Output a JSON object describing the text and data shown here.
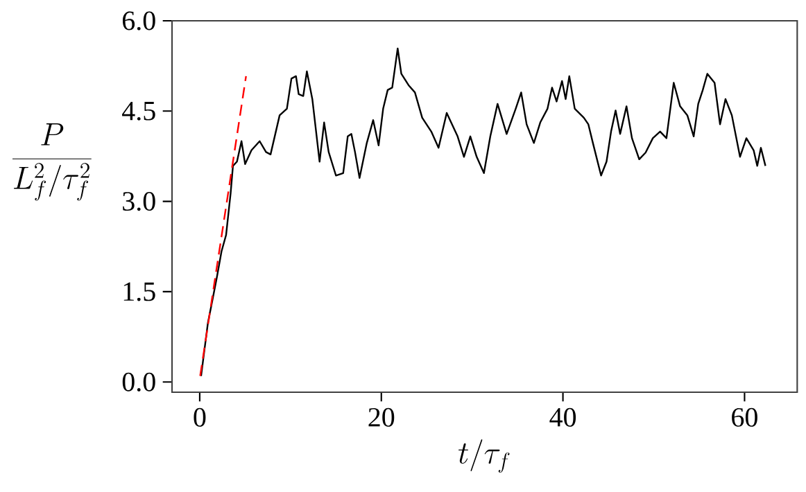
{
  "chart_data": {
    "type": "line",
    "xlabel": "t/\\tau_f",
    "ylabel": "\\frac{P}{L_f^2/\\tau_f^2}",
    "xlim": [
      -3.05,
      65.8
    ],
    "ylim": [
      -0.17,
      6.0
    ],
    "xticks": [
      0,
      20,
      40,
      60
    ],
    "yticks": [
      {
        "value": 0,
        "label": "0.0"
      },
      {
        "value": 1.5,
        "label": "1.5"
      },
      {
        "value": 3,
        "label": "3.0"
      },
      {
        "value": 4.5,
        "label": "4.5"
      },
      {
        "value": 6,
        "label": "6.0"
      }
    ],
    "series": [
      {
        "color": "#000000",
        "line_style": "solid",
        "x": [
          0.15,
          0.9,
          1.4,
          1.9,
          2.4,
          2.9,
          3.4,
          3.66,
          4.1,
          4.6,
          5.0,
          5.7,
          6.6,
          7.3,
          7.8,
          8.8,
          9.6,
          10.1,
          10.6,
          10.9,
          11.4,
          11.8,
          12.4,
          13.2,
          13.7,
          14.2,
          15.0,
          15.8,
          16.3,
          16.7,
          17.1,
          17.6,
          18.4,
          19.1,
          19.7,
          20.2,
          20.7,
          21.2,
          21.8,
          22.2,
          23.0,
          23.7,
          24.5,
          25.5,
          26.3,
          27.2,
          28.4,
          29.1,
          29.8,
          30.5,
          31.3,
          32.0,
          32.8,
          33.8,
          34.8,
          35.4,
          36.0,
          36.8,
          37.5,
          38.3,
          38.8,
          39.3,
          39.9,
          40.3,
          40.7,
          41.3,
          42.3,
          42.8,
          43.3,
          44.2,
          44.8,
          45.3,
          45.8,
          46.3,
          47.0,
          47.6,
          48.4,
          49.1,
          49.9,
          50.7,
          51.4,
          52.2,
          52.9,
          53.7,
          54.4,
          54.9,
          55.4,
          55.9,
          56.7,
          57.3,
          57.9,
          58.6,
          59.5,
          60.2,
          61.0,
          61.4,
          61.8,
          62.3
        ],
        "values": [
          0.1,
          0.98,
          1.36,
          1.75,
          2.17,
          2.44,
          3.13,
          3.59,
          3.66,
          4.0,
          3.62,
          3.85,
          4.0,
          3.82,
          3.78,
          4.43,
          4.54,
          5.04,
          5.08,
          4.78,
          4.75,
          5.16,
          4.7,
          3.66,
          4.31,
          3.82,
          3.43,
          3.47,
          4.08,
          4.12,
          3.82,
          3.39,
          3.97,
          4.35,
          3.93,
          4.54,
          4.85,
          4.89,
          5.54,
          5.12,
          4.93,
          4.81,
          4.39,
          4.16,
          3.89,
          4.47,
          4.08,
          3.74,
          4.08,
          3.74,
          3.47,
          4.08,
          4.62,
          4.12,
          4.54,
          4.81,
          4.28,
          3.97,
          4.31,
          4.54,
          4.89,
          4.66,
          5.0,
          4.7,
          5.08,
          4.54,
          4.39,
          4.28,
          3.97,
          3.43,
          3.66,
          4.16,
          4.51,
          4.12,
          4.58,
          4.05,
          3.7,
          3.81,
          4.05,
          4.16,
          4.05,
          4.97,
          4.58,
          4.43,
          4.08,
          4.62,
          4.85,
          5.12,
          4.97,
          4.28,
          4.7,
          4.43,
          3.74,
          4.05,
          3.85,
          3.59,
          3.89,
          3.59
        ]
      },
      {
        "color": "#ff0000",
        "line_style": "dashed",
        "x": [
          0.05,
          5.1
        ],
        "values": [
          0.1,
          5.08
        ]
      }
    ]
  }
}
